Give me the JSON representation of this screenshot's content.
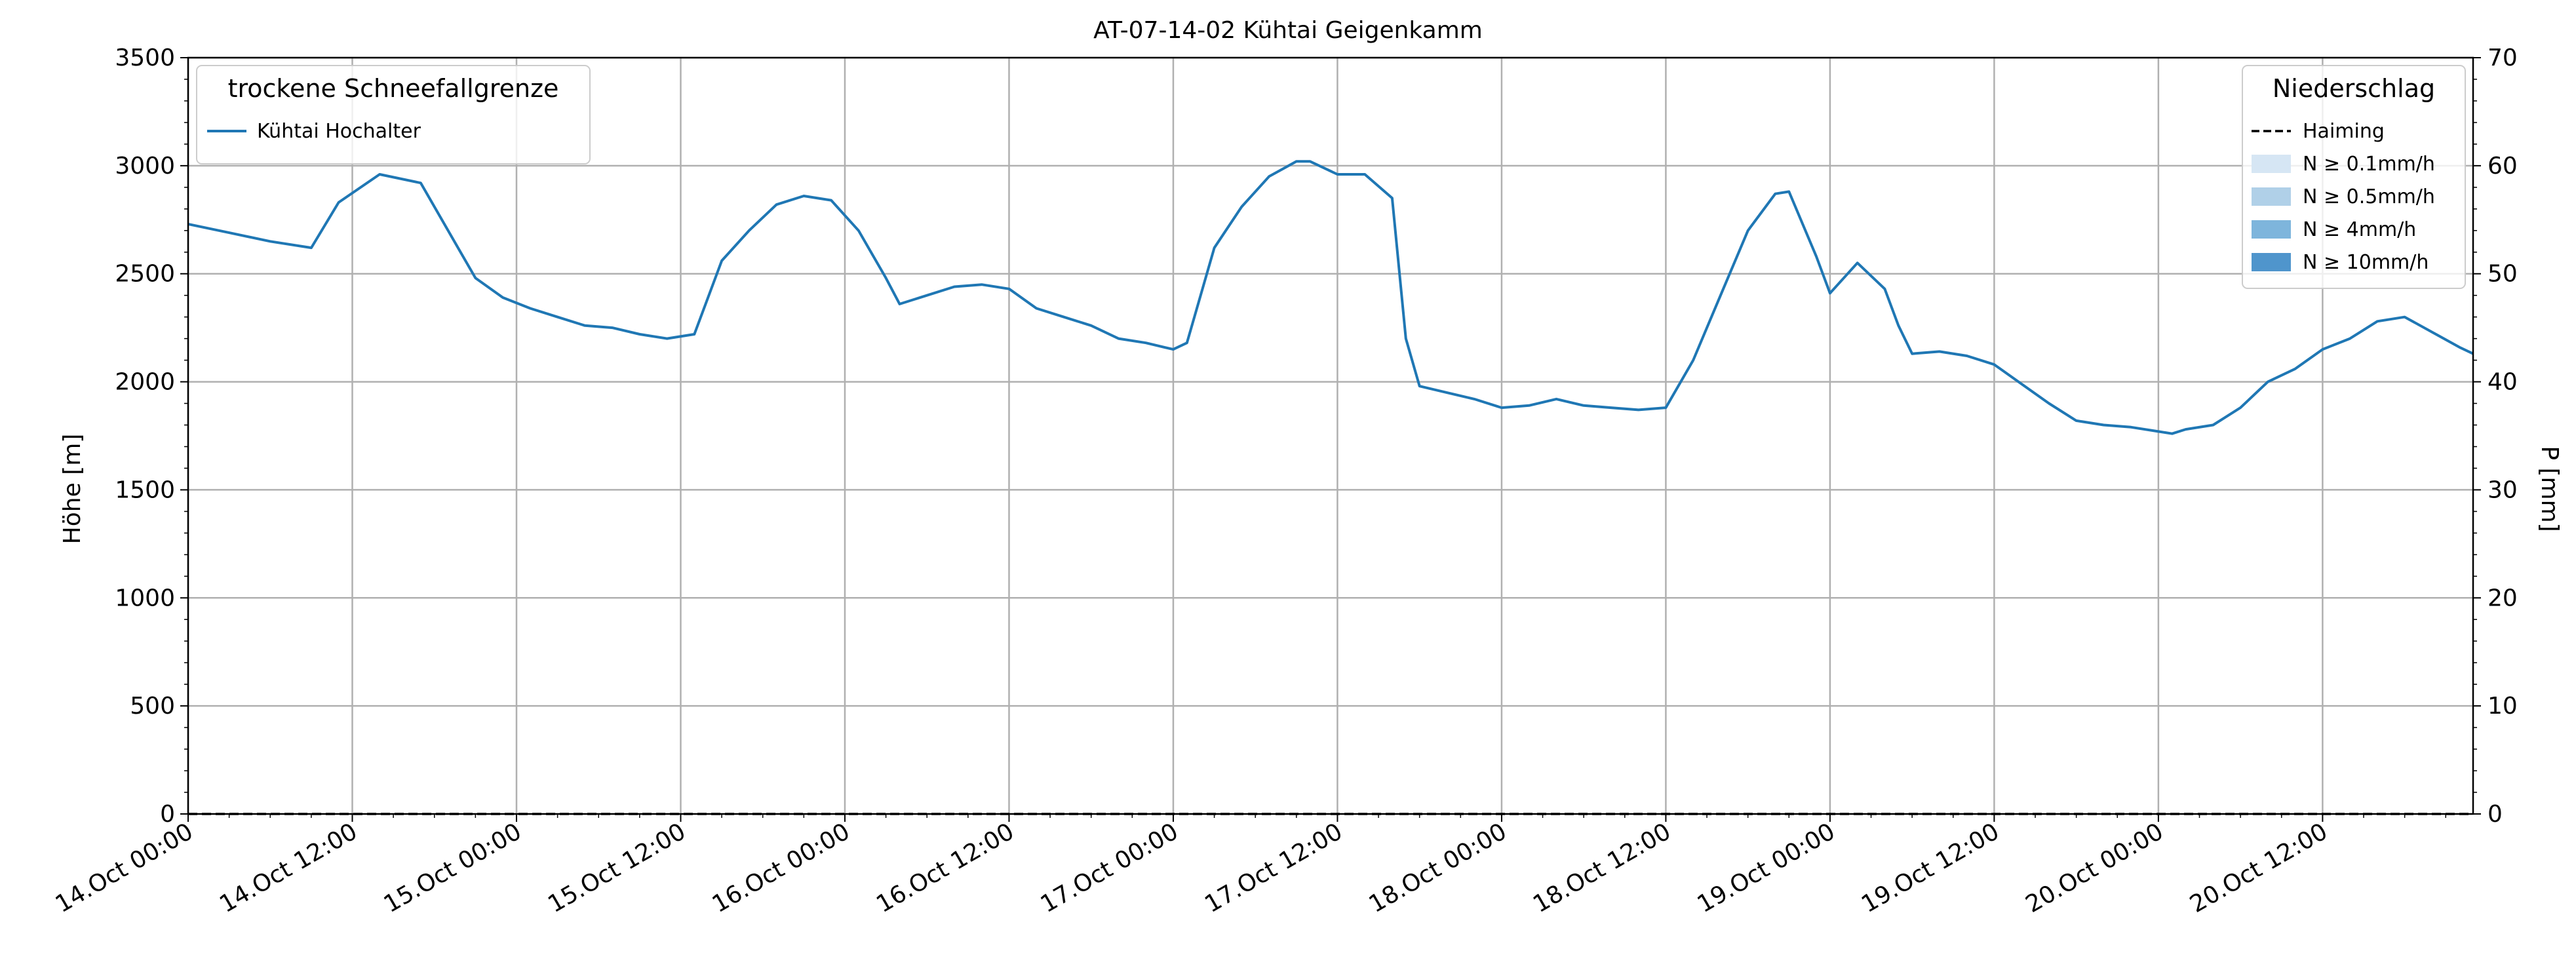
{
  "chart_data": {
    "type": "line",
    "title": "AT-07-14-02 Kühtai Geigenkamm",
    "xlabel": "",
    "ylabel": "Höhe [m]",
    "y2label": "P [mm]",
    "xlim": [
      0,
      167
    ],
    "ylim": [
      0,
      3500
    ],
    "y2lim": [
      0,
      70
    ],
    "grid": true,
    "x_unit": "hours since 14.Oct 00:00",
    "x_ticks": [
      {
        "x": 0,
        "label": "14.Oct 00:00"
      },
      {
        "x": 12,
        "label": "14.Oct 12:00"
      },
      {
        "x": 24,
        "label": "15.Oct 00:00"
      },
      {
        "x": 36,
        "label": "15.Oct 12:00"
      },
      {
        "x": 48,
        "label": "16.Oct 00:00"
      },
      {
        "x": 60,
        "label": "16.Oct 12:00"
      },
      {
        "x": 72,
        "label": "17.Oct 00:00"
      },
      {
        "x": 84,
        "label": "17.Oct 12:00"
      },
      {
        "x": 96,
        "label": "18.Oct 00:00"
      },
      {
        "x": 108,
        "label": "18.Oct 12:00"
      },
      {
        "x": 120,
        "label": "19.Oct 00:00"
      },
      {
        "x": 132,
        "label": "19.Oct 12:00"
      },
      {
        "x": 144,
        "label": "20.Oct 00:00"
      },
      {
        "x": 156,
        "label": "20.Oct 12:00"
      }
    ],
    "y_ticks": [
      0,
      500,
      1000,
      1500,
      2000,
      2500,
      3000,
      3500
    ],
    "y2_ticks": [
      0,
      10,
      20,
      30,
      40,
      50,
      60,
      70
    ],
    "legend_left": {
      "title": "trockene Schneefallgrenze",
      "placement": "top-left"
    },
    "legend_right": {
      "title": "Niederschlag",
      "placement": "top-right",
      "entries": [
        {
          "label": "Haiming",
          "style": "dashed",
          "color": "#000000"
        },
        {
          "label": "N ≥ 0.1mm/h",
          "style": "patch",
          "color": "#d6e6f4"
        },
        {
          "label": "N ≥ 0.5mm/h",
          "style": "patch",
          "color": "#b0d0e8"
        },
        {
          "label": "N ≥ 4mm/h",
          "style": "patch",
          "color": "#7eb5dc"
        },
        {
          "label": "N ≥ 10mm/h",
          "style": "patch",
          "color": "#4f95cc"
        }
      ]
    },
    "precip_series": {
      "name": "Haiming",
      "values": [
        [
          0,
          0
        ],
        [
          167,
          0
        ]
      ]
    },
    "series": [
      {
        "name": "Kühtai Hochalter",
        "color": "#1f77b4",
        "points": [
          [
            0,
            2730
          ],
          [
            3,
            2690
          ],
          [
            6,
            2650
          ],
          [
            9,
            2620
          ],
          [
            11,
            2830
          ],
          [
            14,
            2960
          ],
          [
            17,
            2920
          ],
          [
            19,
            2700
          ],
          [
            21,
            2480
          ],
          [
            23,
            2390
          ],
          [
            25,
            2340
          ],
          [
            27,
            2300
          ],
          [
            29,
            2260
          ],
          [
            31,
            2250
          ],
          [
            33,
            2220
          ],
          [
            35,
            2200
          ],
          [
            37,
            2220
          ],
          [
            39,
            2560
          ],
          [
            41,
            2700
          ],
          [
            43,
            2820
          ],
          [
            45,
            2860
          ],
          [
            47,
            2840
          ],
          [
            49,
            2700
          ],
          [
            51,
            2480
          ],
          [
            52,
            2360
          ],
          [
            54,
            2400
          ],
          [
            56,
            2440
          ],
          [
            58,
            2450
          ],
          [
            60,
            2430
          ],
          [
            62,
            2340
          ],
          [
            64,
            2300
          ],
          [
            66,
            2260
          ],
          [
            68,
            2200
          ],
          [
            70,
            2180
          ],
          [
            72,
            2150
          ],
          [
            73,
            2180
          ],
          [
            75,
            2620
          ],
          [
            77,
            2810
          ],
          [
            79,
            2950
          ],
          [
            81,
            3020
          ],
          [
            82,
            3020
          ],
          [
            84,
            2960
          ],
          [
            86,
            2960
          ],
          [
            88,
            2850
          ],
          [
            89,
            2200
          ],
          [
            90,
            1980
          ],
          [
            92,
            1950
          ],
          [
            94,
            1920
          ],
          [
            96,
            1880
          ],
          [
            98,
            1890
          ],
          [
            100,
            1920
          ],
          [
            102,
            1890
          ],
          [
            104,
            1880
          ],
          [
            106,
            1870
          ],
          [
            108,
            1880
          ],
          [
            110,
            2100
          ],
          [
            112,
            2400
          ],
          [
            114,
            2700
          ],
          [
            116,
            2870
          ],
          [
            117,
            2880
          ],
          [
            119,
            2580
          ],
          [
            120,
            2410
          ],
          [
            122,
            2550
          ],
          [
            124,
            2430
          ],
          [
            125,
            2260
          ],
          [
            126,
            2130
          ],
          [
            128,
            2140
          ],
          [
            130,
            2120
          ],
          [
            132,
            2080
          ],
          [
            134,
            1990
          ],
          [
            136,
            1900
          ],
          [
            138,
            1820
          ],
          [
            140,
            1800
          ],
          [
            142,
            1790
          ],
          [
            144,
            1770
          ],
          [
            145,
            1760
          ],
          [
            146,
            1780
          ],
          [
            148,
            1800
          ],
          [
            150,
            1880
          ],
          [
            152,
            2000
          ],
          [
            154,
            2060
          ],
          [
            156,
            2150
          ],
          [
            158,
            2200
          ],
          [
            160,
            2280
          ],
          [
            162,
            2300
          ],
          [
            164,
            2230
          ],
          [
            166,
            2160
          ],
          [
            167,
            2130
          ]
        ]
      }
    ]
  }
}
